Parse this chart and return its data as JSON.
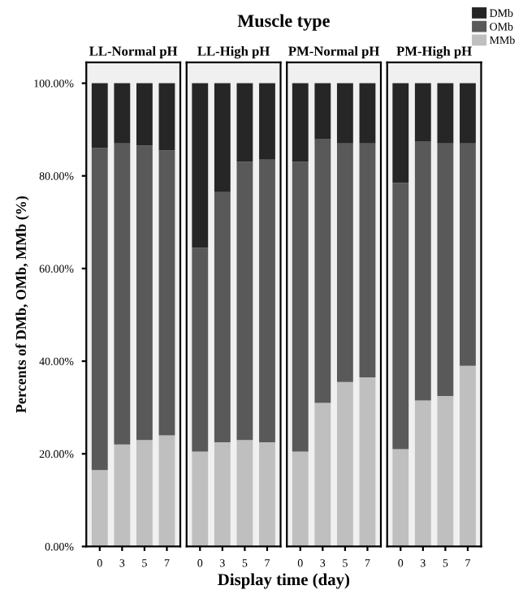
{
  "chart_data": [
    {
      "type": "bar",
      "stacked": true,
      "title": "LL-Normal pH",
      "annotations": [
        "Muscle type"
      ],
      "ylabel": "Percents of DMb, OMb, MMb (%)",
      "xlabel": "Display time (day)",
      "legend": "top right",
      "categories": [
        "0",
        "3",
        "5",
        "7"
      ],
      "ylim": [
        0,
        104.5
      ],
      "yticks": [
        {
          "value": 0,
          "label": "0.00%"
        },
        {
          "value": 20,
          "label": "20.00%"
        },
        {
          "value": 40,
          "label": "40.00%"
        },
        {
          "value": 60,
          "label": "60.00%"
        },
        {
          "value": 80,
          "label": "80.00%"
        },
        {
          "value": 100,
          "label": "100.00%"
        }
      ],
      "series": [
        {
          "name": "MMb",
          "color": "#bfbfbf",
          "values": [
            16.5,
            22,
            23,
            24
          ]
        },
        {
          "name": "OMb",
          "color": "#595959",
          "values": [
            69.5,
            65,
            63.5,
            61.5
          ]
        },
        {
          "name": "DMb",
          "color": "#262626",
          "values": [
            14,
            13,
            13.5,
            14.5
          ]
        }
      ]
    },
    {
      "type": "bar",
      "stacked": true,
      "title": "LL-High pH",
      "tick_labels": "x",
      "categories": [
        "0",
        "3",
        "5",
        "7"
      ],
      "ylim": [
        0,
        104.5
      ],
      "series": [
        {
          "color": "#bfbfbf",
          "values": [
            20.5,
            22.5,
            23,
            22.5
          ]
        },
        {
          "color": "#595959",
          "values": [
            44,
            54,
            60,
            61
          ]
        },
        {
          "color": "#262626",
          "values": [
            35.5,
            23.5,
            17,
            16.5
          ]
        }
      ]
    },
    {
      "type": "bar",
      "stacked": true,
      "title": "PM-Normal pH",
      "tick_labels": "x",
      "categories": [
        "0",
        "3",
        "5",
        "7"
      ],
      "ylim": [
        0,
        104.5
      ],
      "series": [
        {
          "color": "#bfbfbf",
          "values": [
            20.5,
            31,
            35.5,
            36.5
          ]
        },
        {
          "color": "#595959",
          "values": [
            62.5,
            57,
            51.5,
            50.5
          ]
        },
        {
          "color": "#262626",
          "values": [
            17,
            12,
            13,
            13
          ]
        }
      ]
    },
    {
      "type": "bar",
      "stacked": true,
      "title": "PM-High pH",
      "tick_labels": "x",
      "categories": [
        "0",
        "3",
        "5",
        "7"
      ],
      "ylim": [
        0,
        104.5
      ],
      "series": [
        {
          "color": "#bfbfbf",
          "values": [
            21,
            31.5,
            32.5,
            39
          ]
        },
        {
          "color": "#595959",
          "values": [
            57.5,
            56,
            54.5,
            48
          ]
        },
        {
          "color": "#262626",
          "values": [
            21.5,
            12.5,
            13,
            13
          ]
        }
      ]
    }
  ]
}
